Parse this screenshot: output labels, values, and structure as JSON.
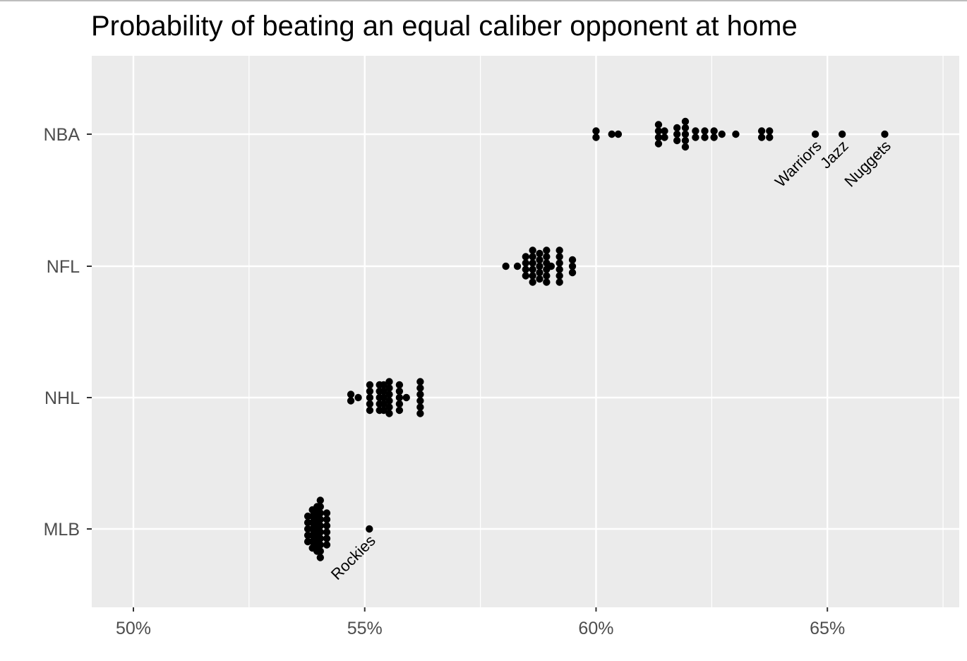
{
  "chart_data": {
    "type": "scatter",
    "title": "Probability of beating an equal caliber opponent at home",
    "xlabel": "",
    "ylabel": "",
    "xlim": [
      0.491,
      0.6785
    ],
    "x_ticks": [
      0.5,
      0.55,
      0.6,
      0.65
    ],
    "x_tick_labels": [
      "50%",
      "55%",
      "60%",
      "65%"
    ],
    "categories": [
      "NBA",
      "NFL",
      "NHL",
      "MLB"
    ],
    "grid": true,
    "background": "#ebebeb",
    "grid_color": "#ffffff",
    "point_color": "#000000",
    "series": [
      {
        "name": "NBA",
        "points": [
          {
            "x": 0.6,
            "n": 2
          },
          {
            "x": 0.6034,
            "n": 1
          },
          {
            "x": 0.6048,
            "n": 1
          },
          {
            "x": 0.6135,
            "n": 4
          },
          {
            "x": 0.6148,
            "n": 2
          },
          {
            "x": 0.6175,
            "n": 3
          },
          {
            "x": 0.6193,
            "n": 5
          },
          {
            "x": 0.6215,
            "n": 2
          },
          {
            "x": 0.6235,
            "n": 2
          },
          {
            "x": 0.6255,
            "n": 2
          },
          {
            "x": 0.6272,
            "n": 1
          },
          {
            "x": 0.6302,
            "n": 1
          },
          {
            "x": 0.6358,
            "n": 2
          },
          {
            "x": 0.6375,
            "n": 2
          },
          {
            "x": 0.6474,
            "n": 1,
            "label": "Warriors"
          },
          {
            "x": 0.6532,
            "n": 1,
            "label": "Jazz"
          },
          {
            "x": 0.6624,
            "n": 1,
            "label": "Nuggets"
          }
        ]
      },
      {
        "name": "NFL",
        "points": [
          {
            "x": 0.5805,
            "n": 1
          },
          {
            "x": 0.583,
            "n": 1
          },
          {
            "x": 0.5848,
            "n": 4
          },
          {
            "x": 0.5863,
            "n": 6
          },
          {
            "x": 0.5878,
            "n": 5
          },
          {
            "x": 0.5893,
            "n": 6
          },
          {
            "x": 0.5903,
            "n": 1
          },
          {
            "x": 0.5921,
            "n": 6
          },
          {
            "x": 0.5949,
            "n": 3
          }
        ]
      },
      {
        "name": "NHL",
        "points": [
          {
            "x": 0.547,
            "n": 2
          },
          {
            "x": 0.5486,
            "n": 1
          },
          {
            "x": 0.5511,
            "n": 5
          },
          {
            "x": 0.5532,
            "n": 5
          },
          {
            "x": 0.5541,
            "n": 5
          },
          {
            "x": 0.5553,
            "n": 6
          },
          {
            "x": 0.5575,
            "n": 5
          },
          {
            "x": 0.559,
            "n": 1
          },
          {
            "x": 0.562,
            "n": 6
          }
        ]
      },
      {
        "name": "MLB",
        "points": [
          {
            "x": 0.5377,
            "n": 5
          },
          {
            "x": 0.5387,
            "n": 7
          },
          {
            "x": 0.5397,
            "n": 8
          },
          {
            "x": 0.5404,
            "n": 10
          },
          {
            "x": 0.5418,
            "n": 6
          },
          {
            "x": 0.551,
            "n": 1,
            "label": "Rockies"
          }
        ]
      }
    ]
  }
}
